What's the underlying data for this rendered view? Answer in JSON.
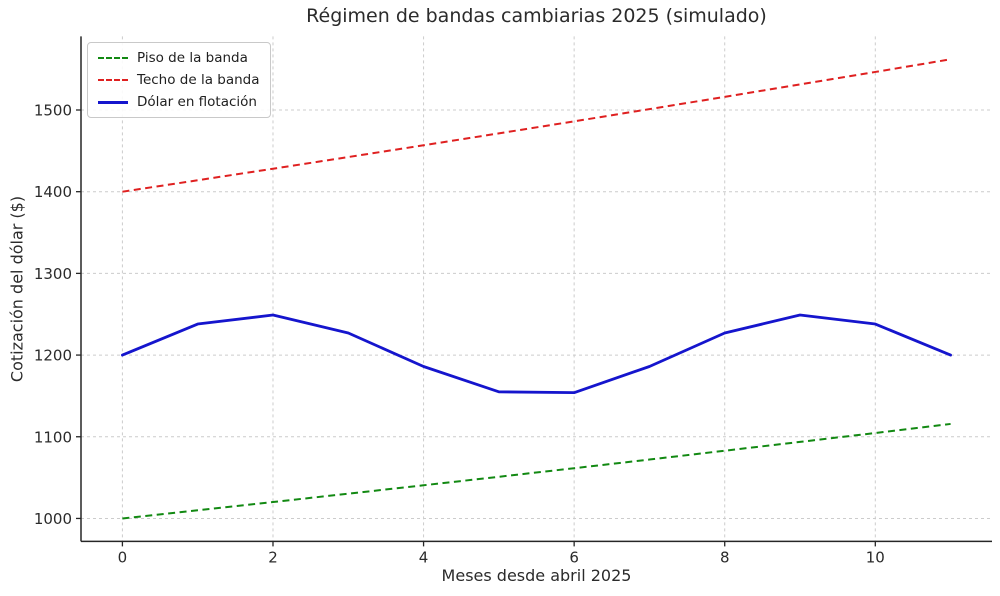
{
  "figure": {
    "title": "Régimen de bandas cambiarias 2025 (simulado)",
    "xlabel": "Meses desde abril 2025",
    "ylabel": "Cotización del dólar ($)"
  },
  "chart_data": {
    "type": "line",
    "title": "Régimen de bandas cambiarias 2025 (simulado)",
    "xlabel": "Meses desde abril 2025",
    "ylabel": "Cotización del dólar ($)",
    "x": [
      0,
      1,
      2,
      3,
      4,
      5,
      6,
      7,
      8,
      9,
      10,
      11
    ],
    "series": [
      {
        "name": "Piso de la banda",
        "color": "#128912",
        "style": "dashed",
        "values": [
          1000,
          1010,
          1020.1,
          1030.3,
          1040.6,
          1051.0,
          1061.5,
          1072.1,
          1082.9,
          1093.7,
          1104.6,
          1115.7
        ]
      },
      {
        "name": "Techo de la banda",
        "color": "#df2020",
        "style": "dashed",
        "values": [
          1400,
          1414,
          1428.1,
          1442.4,
          1456.8,
          1471.4,
          1486.1,
          1501.1,
          1516.1,
          1531.3,
          1546.6,
          1562.1
        ]
      },
      {
        "name": "Dólar en flotación",
        "color": "#1515cd",
        "style": "solid",
        "values": [
          1200,
          1238,
          1249,
          1227,
          1186,
          1155,
          1154,
          1186,
          1227,
          1249,
          1238,
          1200
        ]
      }
    ],
    "xticks": [
      0,
      2,
      4,
      6,
      8,
      10
    ],
    "yticks": [
      1000,
      1100,
      1200,
      1300,
      1400,
      1500
    ],
    "xlim": [
      -0.55,
      11.55
    ],
    "ylim": [
      971.9,
      1590.1
    ],
    "grid": true,
    "grid_style": "dashed",
    "legend_position": "upper left"
  }
}
